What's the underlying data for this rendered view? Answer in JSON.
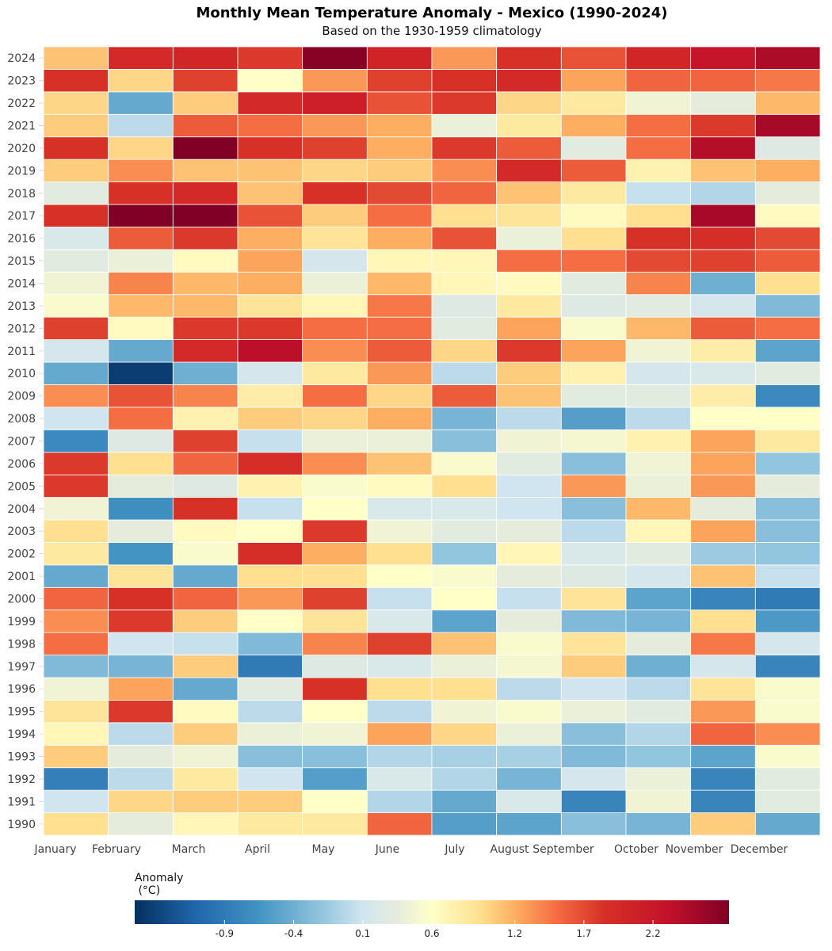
{
  "chart_data": {
    "type": "heatmap",
    "title": "Monthly Mean Temperature Anomaly - Mexico (1990-2024)",
    "subtitle": "Based on the 1930-1959 climatology",
    "x": [
      "January",
      "February",
      "March",
      "April",
      "May",
      "June",
      "July",
      "August",
      "September",
      "October",
      "November",
      "December"
    ],
    "y": [
      1990,
      1991,
      1992,
      1993,
      1994,
      1995,
      1996,
      1997,
      1998,
      1999,
      2000,
      2001,
      2002,
      2003,
      2004,
      2005,
      2006,
      2007,
      2008,
      2009,
      2010,
      2011,
      2012,
      2013,
      2014,
      2015,
      2016,
      2017,
      2018,
      2019,
      2020,
      2021,
      2022,
      2023,
      2024
    ],
    "values": [
      [
        0.95,
        0.35,
        0.7,
        0.85,
        0.85,
        1.55,
        -0.55,
        -0.5,
        -0.25,
        -0.35,
        1.05,
        -0.45
      ],
      [
        0.1,
        1.0,
        1.05,
        1.05,
        0.6,
        -0.05,
        -0.45,
        0.2,
        -0.8,
        0.45,
        -0.8,
        0.3
      ],
      [
        -0.85,
        0.0,
        0.85,
        0.1,
        -0.55,
        0.2,
        -0.05,
        -0.35,
        0.15,
        0.4,
        -0.8,
        0.3
      ],
      [
        1.05,
        0.35,
        0.45,
        -0.25,
        -0.25,
        -0.05,
        -0.1,
        -0.1,
        -0.3,
        -0.2,
        -0.5,
        0.55
      ],
      [
        0.7,
        0.0,
        1.05,
        0.4,
        0.45,
        1.25,
        1.0,
        0.4,
        -0.25,
        -0.05,
        1.55,
        1.35
      ],
      [
        0.9,
        1.8,
        0.65,
        0.0,
        0.6,
        0.0,
        0.45,
        0.55,
        0.4,
        0.3,
        1.3,
        0.55
      ],
      [
        0.45,
        1.25,
        -0.45,
        0.3,
        1.85,
        0.95,
        0.95,
        0.0,
        0.1,
        0.0,
        0.9,
        0.55
      ],
      [
        -0.3,
        -0.35,
        1.05,
        -0.9,
        0.25,
        0.2,
        0.4,
        0.5,
        1.05,
        -0.4,
        0.15,
        -0.8
      ],
      [
        1.5,
        0.1,
        0.05,
        -0.3,
        1.4,
        1.75,
        1.1,
        0.55,
        0.9,
        0.35,
        1.45,
        0.15
      ],
      [
        1.35,
        1.8,
        1.05,
        0.6,
        0.9,
        0.2,
        -0.5,
        0.35,
        -0.3,
        -0.35,
        0.95,
        -0.6
      ],
      [
        1.55,
        1.85,
        1.55,
        1.3,
        1.75,
        0.05,
        0.6,
        0.05,
        0.9,
        -0.5,
        -0.8,
        -0.9
      ],
      [
        -0.45,
        0.9,
        -0.45,
        0.95,
        0.95,
        0.6,
        0.55,
        0.35,
        0.25,
        0.15,
        1.1,
        0.05
      ],
      [
        0.85,
        -0.65,
        0.55,
        1.9,
        1.2,
        0.95,
        -0.2,
        0.7,
        0.2,
        0.3,
        -0.15,
        -0.2
      ],
      [
        0.95,
        0.35,
        0.65,
        0.6,
        1.8,
        0.45,
        0.3,
        0.35,
        0.0,
        0.7,
        1.25,
        -0.25
      ],
      [
        0.45,
        -0.7,
        1.85,
        0.05,
        0.6,
        0.2,
        0.2,
        0.1,
        -0.25,
        1.15,
        0.35,
        -0.25
      ],
      [
        1.8,
        0.35,
        0.25,
        0.75,
        0.55,
        0.65,
        0.95,
        0.1,
        1.3,
        0.4,
        1.3,
        0.35
      ],
      [
        1.8,
        0.95,
        1.55,
        1.9,
        1.35,
        1.1,
        0.55,
        0.3,
        -0.25,
        0.45,
        1.25,
        -0.2
      ],
      [
        -0.75,
        0.25,
        1.75,
        0.05,
        0.4,
        0.4,
        -0.25,
        0.45,
        0.5,
        0.75,
        1.25,
        0.85
      ],
      [
        0.1,
        1.5,
        0.75,
        1.05,
        1.0,
        1.2,
        -0.35,
        0.0,
        -0.55,
        0.0,
        0.6,
        0.6
      ],
      [
        1.35,
        1.65,
        1.4,
        0.8,
        1.5,
        1.0,
        1.6,
        1.1,
        0.3,
        0.3,
        0.8,
        -0.75
      ],
      [
        -0.45,
        -1.45,
        -0.4,
        0.15,
        0.85,
        1.3,
        0.0,
        1.05,
        0.75,
        0.15,
        0.2,
        0.3
      ],
      [
        0.15,
        -0.45,
        1.95,
        2.35,
        1.35,
        1.6,
        1.0,
        1.8,
        1.25,
        0.45,
        0.8,
        -0.5
      ],
      [
        1.75,
        0.65,
        1.8,
        1.8,
        1.5,
        1.5,
        0.3,
        1.25,
        0.55,
        1.15,
        1.6,
        1.5
      ],
      [
        0.55,
        1.15,
        1.15,
        0.9,
        0.7,
        1.45,
        0.25,
        0.85,
        0.25,
        0.3,
        0.15,
        -0.3
      ],
      [
        0.45,
        1.4,
        1.15,
        1.2,
        0.4,
        1.15,
        0.7,
        0.65,
        0.3,
        1.4,
        -0.4,
        0.95
      ],
      [
        0.3,
        0.4,
        0.65,
        1.25,
        0.15,
        0.7,
        0.7,
        1.5,
        1.5,
        1.7,
        1.75,
        1.6
      ],
      [
        0.2,
        1.6,
        1.8,
        1.2,
        0.9,
        1.2,
        1.65,
        0.4,
        0.95,
        1.85,
        1.9,
        1.7
      ],
      [
        1.85,
        2.75,
        2.8,
        1.65,
        1.05,
        1.5,
        0.95,
        0.9,
        0.65,
        0.95,
        2.5,
        0.65
      ],
      [
        0.3,
        1.85,
        1.95,
        1.1,
        1.85,
        1.7,
        1.55,
        1.1,
        0.85,
        0.05,
        -0.05,
        0.35
      ],
      [
        1.05,
        1.35,
        1.1,
        1.1,
        1.0,
        1.05,
        1.35,
        1.95,
        1.6,
        0.75,
        1.1,
        1.2
      ],
      [
        1.85,
        1.0,
        2.75,
        1.85,
        1.75,
        1.2,
        1.8,
        1.6,
        0.3,
        1.5,
        2.4,
        0.25
      ],
      [
        1.05,
        0.0,
        1.6,
        1.5,
        1.3,
        1.2,
        0.4,
        0.85,
        1.2,
        1.5,
        1.8,
        2.5
      ],
      [
        1.0,
        -0.45,
        1.05,
        1.95,
        2.1,
        1.65,
        1.8,
        1.0,
        0.85,
        0.45,
        0.35,
        1.15
      ],
      [
        1.85,
        1.0,
        1.75,
        0.6,
        1.3,
        1.75,
        1.85,
        1.95,
        1.25,
        1.55,
        1.55,
        1.45
      ],
      [
        1.1,
        1.95,
        2.0,
        1.8,
        2.7,
        2.05,
        1.3,
        1.85,
        1.65,
        2.0,
        2.25,
        2.45
      ]
    ],
    "colorscale": [
      [
        -1.55,
        "#053061"
      ],
      [
        -1.1,
        "#2166ac"
      ],
      [
        -0.65,
        "#4393c3"
      ],
      [
        -0.2,
        "#92c5de"
      ],
      [
        0.1,
        "#d1e5f0"
      ],
      [
        0.35,
        "#e6ecdc"
      ],
      [
        0.6,
        "#ffffc8"
      ],
      [
        0.95,
        "#fee090"
      ],
      [
        1.2,
        "#fdae61"
      ],
      [
        1.5,
        "#f46d43"
      ],
      [
        1.85,
        "#d73027"
      ],
      [
        2.3,
        "#c4122a"
      ],
      [
        2.75,
        "#800026"
      ]
    ],
    "zrange": [
      -1.55,
      2.75
    ],
    "legend_title_line1": "Anomaly",
    "legend_title_line2": " (°C)",
    "legend_ticks": [
      -0.9,
      -0.4,
      0.1,
      0.6,
      1.2,
      1.7,
      2.2
    ],
    "legend_tick_labels": [
      "-0.9",
      "-0.4",
      "0.1",
      "0.6",
      "1.2",
      "1.7",
      "2.2"
    ],
    "legend_placement": "bottom",
    "grid": true
  }
}
